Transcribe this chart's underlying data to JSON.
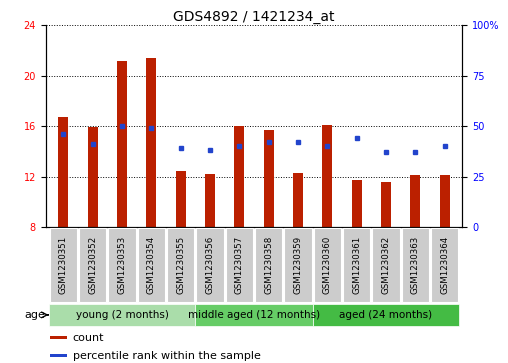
{
  "title": "GDS4892 / 1421234_at",
  "samples": [
    "GSM1230351",
    "GSM1230352",
    "GSM1230353",
    "GSM1230354",
    "GSM1230355",
    "GSM1230356",
    "GSM1230357",
    "GSM1230358",
    "GSM1230359",
    "GSM1230360",
    "GSM1230361",
    "GSM1230362",
    "GSM1230363",
    "GSM1230364"
  ],
  "counts_all": [
    16.7,
    15.9,
    21.2,
    21.4,
    12.4,
    12.2,
    16.0,
    15.7,
    12.3,
    16.1,
    11.7,
    11.6,
    12.1,
    12.1
  ],
  "percentiles": [
    46,
    41,
    50,
    49,
    39,
    38,
    40,
    42,
    42,
    40,
    44,
    37,
    37,
    40
  ],
  "bar_color": "#bb2000",
  "dot_color": "#2244cc",
  "ylim_left": [
    8,
    24
  ],
  "ylim_right": [
    0,
    100
  ],
  "yticks_left": [
    8,
    12,
    16,
    20,
    24
  ],
  "yticks_right": [
    0,
    25,
    50,
    75,
    100
  ],
  "ytick_labels_right": [
    "0",
    "25",
    "50",
    "75",
    "100%"
  ],
  "groups": [
    {
      "label": "young (2 months)",
      "start": 0,
      "end": 5,
      "color": "#aaddaa"
    },
    {
      "label": "middle aged (12 months)",
      "start": 5,
      "end": 9,
      "color": "#66cc66"
    },
    {
      "label": "aged (24 months)",
      "start": 9,
      "end": 14,
      "color": "#44bb44"
    }
  ],
  "age_label": "age",
  "legend_items": [
    {
      "color": "#bb2000",
      "label": "count"
    },
    {
      "color": "#2244cc",
      "label": "percentile rank within the sample"
    }
  ],
  "bar_width": 0.35,
  "base_value": 8.0,
  "title_fontsize": 10,
  "tick_fontsize": 7,
  "label_fontsize": 7.5,
  "group_fontsize": 7.5,
  "legend_fontsize": 8
}
